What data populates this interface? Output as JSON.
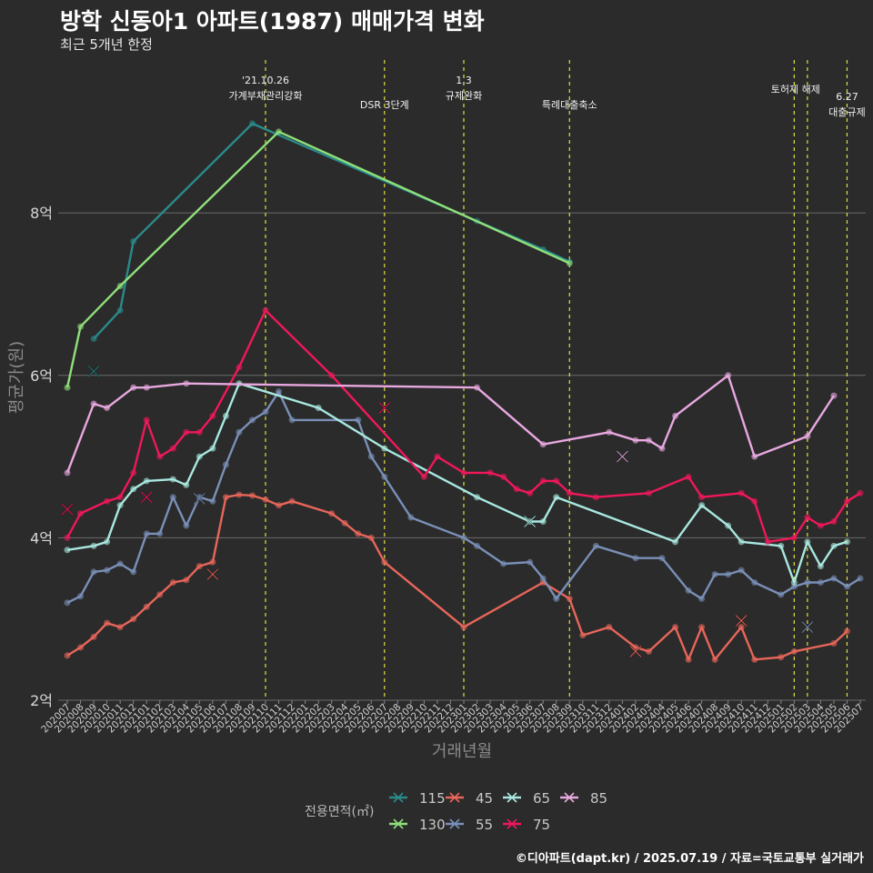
{
  "header": {
    "title": "방학 신동아1 아파트(1987) 매매가격 변화",
    "subtitle": "최근 5개년 한정"
  },
  "footer": {
    "source": "©디아파트(dapt.kr) / 2025.07.19 / 자료=국토교통부 실거래가"
  },
  "chart_data": {
    "type": "line",
    "title": "방학 신동아1 아파트(1987) 매매가격 변화",
    "subtitle": "최근 5개년 한정",
    "xlabel": "거래년월",
    "ylabel": "평균가(원)",
    "ylim": [
      2,
      9.95
    ],
    "yticks": [
      2,
      4,
      6,
      8
    ],
    "ytick_labels": [
      "2억",
      "4억",
      "6억",
      "8억"
    ],
    "x_categories": [
      "202007",
      "202008",
      "202009",
      "202010",
      "202011",
      "202012",
      "202101",
      "202102",
      "202103",
      "202104",
      "202105",
      "202106",
      "202107",
      "202108",
      "202109",
      "202110",
      "202111",
      "202112",
      "202201",
      "202202",
      "202203",
      "202204",
      "202205",
      "202206",
      "202207",
      "202208",
      "202209",
      "202210",
      "202211",
      "202212",
      "202301",
      "202302",
      "202303",
      "202304",
      "202305",
      "202306",
      "202307",
      "202308",
      "202309",
      "202310",
      "202311",
      "202312",
      "202401",
      "202402",
      "202403",
      "202404",
      "202405",
      "202406",
      "202407",
      "202408",
      "202409",
      "202410",
      "202411",
      "202412",
      "202501",
      "202502",
      "202503",
      "202504",
      "202505",
      "202506",
      "202507"
    ],
    "grid": true,
    "legend_title": "전용면적(㎡)",
    "legend_position": "bottom",
    "series": [
      {
        "name": "115",
        "color": "#2a8a8a",
        "points": [
          [
            "202009",
            6.45
          ],
          [
            "202011",
            6.8
          ],
          [
            "202012",
            7.65
          ],
          [
            "202109",
            9.1
          ],
          [
            "202302",
            7.9
          ],
          [
            "202307",
            7.55
          ],
          [
            "202309",
            7.4
          ]
        ],
        "markers": [
          [
            "202009",
            6.05
          ]
        ]
      },
      {
        "name": "130",
        "color": "#90e07a",
        "points": [
          [
            "202007",
            5.85
          ],
          [
            "202008",
            6.6
          ],
          [
            "202011",
            7.1
          ],
          [
            "202111",
            9.0
          ],
          [
            "202309",
            7.38
          ]
        ],
        "markers": []
      },
      {
        "name": "45",
        "color": "#e8665a",
        "points": [
          [
            "202007",
            2.55
          ],
          [
            "202008",
            2.65
          ],
          [
            "202009",
            2.78
          ],
          [
            "202010",
            2.95
          ],
          [
            "202011",
            2.9
          ],
          [
            "202012",
            3.0
          ],
          [
            "202101",
            3.15
          ],
          [
            "202102",
            3.3
          ],
          [
            "202103",
            3.45
          ],
          [
            "202104",
            3.48
          ],
          [
            "202105",
            3.65
          ],
          [
            "202106",
            3.7
          ],
          [
            "202107",
            4.5
          ],
          [
            "202108",
            4.53
          ],
          [
            "202109",
            4.52
          ],
          [
            "202110",
            4.47
          ],
          [
            "202111",
            4.4
          ],
          [
            "202112",
            4.45
          ],
          [
            "202203",
            4.3
          ],
          [
            "202204",
            4.18
          ],
          [
            "202205",
            4.05
          ],
          [
            "202206",
            4.0
          ],
          [
            "202207",
            3.7
          ],
          [
            "202301",
            2.9
          ],
          [
            "202307",
            3.45
          ],
          [
            "202309",
            3.25
          ],
          [
            "202310",
            2.8
          ],
          [
            "202312",
            2.9
          ],
          [
            "202402",
            2.65
          ],
          [
            "202403",
            2.6
          ],
          [
            "202405",
            2.9
          ],
          [
            "202406",
            2.5
          ],
          [
            "202407",
            2.9
          ],
          [
            "202408",
            2.5
          ],
          [
            "202410",
            2.9
          ],
          [
            "202411",
            2.5
          ],
          [
            "202501",
            2.53
          ],
          [
            "202502",
            2.6
          ],
          [
            "202505",
            2.7
          ],
          [
            "202506",
            2.85
          ]
        ],
        "markers": [
          [
            "202106",
            3.55
          ],
          [
            "202402",
            2.6
          ],
          [
            "202410",
            2.98
          ]
        ]
      },
      {
        "name": "55",
        "color": "#7a90b8",
        "points": [
          [
            "202007",
            3.2
          ],
          [
            "202008",
            3.28
          ],
          [
            "202009",
            3.58
          ],
          [
            "202010",
            3.6
          ],
          [
            "202011",
            3.68
          ],
          [
            "202012",
            3.58
          ],
          [
            "202101",
            4.05
          ],
          [
            "202102",
            4.05
          ],
          [
            "202103",
            4.5
          ],
          [
            "202104",
            4.15
          ],
          [
            "202105",
            4.5
          ],
          [
            "202106",
            4.45
          ],
          [
            "202107",
            4.9
          ],
          [
            "202108",
            5.3
          ],
          [
            "202109",
            5.45
          ],
          [
            "202110",
            5.55
          ],
          [
            "202111",
            5.8
          ],
          [
            "202112",
            5.45
          ],
          [
            "202205",
            5.45
          ],
          [
            "202206",
            5.0
          ],
          [
            "202207",
            4.75
          ],
          [
            "202209",
            4.25
          ],
          [
            "202301",
            4.0
          ],
          [
            "202302",
            3.9
          ],
          [
            "202304",
            3.68
          ],
          [
            "202306",
            3.7
          ],
          [
            "202307",
            3.5
          ],
          [
            "202308",
            3.25
          ],
          [
            "202311",
            3.9
          ],
          [
            "202402",
            3.75
          ],
          [
            "202404",
            3.75
          ],
          [
            "202406",
            3.35
          ],
          [
            "202407",
            3.25
          ],
          [
            "202408",
            3.55
          ],
          [
            "202409",
            3.55
          ],
          [
            "202410",
            3.6
          ],
          [
            "202411",
            3.45
          ],
          [
            "202501",
            3.3
          ],
          [
            "202502",
            3.4
          ],
          [
            "202503",
            3.45
          ],
          [
            "202504",
            3.45
          ],
          [
            "202505",
            3.5
          ],
          [
            "202506",
            3.4
          ],
          [
            "202507",
            3.5
          ]
        ],
        "markers": [
          [
            "202105",
            4.48
          ],
          [
            "202503",
            2.9
          ]
        ]
      },
      {
        "name": "65",
        "color": "#a8e8e0",
        "points": [
          [
            "202007",
            3.85
          ],
          [
            "202009",
            3.9
          ],
          [
            "202010",
            3.95
          ],
          [
            "202011",
            4.4
          ],
          [
            "202012",
            4.6
          ],
          [
            "202101",
            4.7
          ],
          [
            "202103",
            4.72
          ],
          [
            "202104",
            4.65
          ],
          [
            "202105",
            5.0
          ],
          [
            "202106",
            5.1
          ],
          [
            "202107",
            5.5
          ],
          [
            "202108",
            5.9
          ],
          [
            "202202",
            5.6
          ],
          [
            "202207",
            5.1
          ],
          [
            "202302",
            4.5
          ],
          [
            "202306",
            4.2
          ],
          [
            "202307",
            4.2
          ],
          [
            "202308",
            4.5
          ],
          [
            "202405",
            3.95
          ],
          [
            "202407",
            4.4
          ],
          [
            "202409",
            4.15
          ],
          [
            "202410",
            3.95
          ],
          [
            "202501",
            3.9
          ],
          [
            "202502",
            3.45
          ],
          [
            "202503",
            3.95
          ],
          [
            "202504",
            3.65
          ],
          [
            "202505",
            3.9
          ],
          [
            "202506",
            3.95
          ]
        ],
        "markers": [
          [
            "202306",
            4.2
          ]
        ]
      },
      {
        "name": "75",
        "color": "#f0185a",
        "points": [
          [
            "202007",
            4.0
          ],
          [
            "202008",
            4.3
          ],
          [
            "202010",
            4.45
          ],
          [
            "202011",
            4.5
          ],
          [
            "202012",
            4.8
          ],
          [
            "202101",
            5.45
          ],
          [
            "202102",
            5.0
          ],
          [
            "202103",
            5.1
          ],
          [
            "202104",
            5.3
          ],
          [
            "202105",
            5.3
          ],
          [
            "202106",
            5.5
          ],
          [
            "202108",
            6.1
          ],
          [
            "202110",
            6.8
          ],
          [
            "202203",
            6.0
          ],
          [
            "202210",
            4.75
          ],
          [
            "202211",
            5.0
          ],
          [
            "202301",
            4.8
          ],
          [
            "202303",
            4.8
          ],
          [
            "202304",
            4.75
          ],
          [
            "202305",
            4.6
          ],
          [
            "202306",
            4.55
          ],
          [
            "202307",
            4.7
          ],
          [
            "202308",
            4.7
          ],
          [
            "202309",
            4.55
          ],
          [
            "202311",
            4.5
          ],
          [
            "202403",
            4.55
          ],
          [
            "202406",
            4.75
          ],
          [
            "202407",
            4.5
          ],
          [
            "202410",
            4.55
          ],
          [
            "202411",
            4.45
          ],
          [
            "202412",
            3.95
          ],
          [
            "202502",
            4.0
          ],
          [
            "202503",
            4.25
          ],
          [
            "202504",
            4.15
          ],
          [
            "202505",
            4.2
          ],
          [
            "202506",
            4.45
          ],
          [
            "202507",
            4.55
          ]
        ],
        "markers": [
          [
            "202007",
            4.35
          ],
          [
            "202101",
            4.5
          ],
          [
            "202207",
            5.6
          ]
        ]
      },
      {
        "name": "85",
        "color": "#e8a8e0",
        "points": [
          [
            "202007",
            4.8
          ],
          [
            "202009",
            5.65
          ],
          [
            "202010",
            5.6
          ],
          [
            "202012",
            5.85
          ],
          [
            "202101",
            5.85
          ],
          [
            "202104",
            5.9
          ],
          [
            "202302",
            5.85
          ],
          [
            "202307",
            5.15
          ],
          [
            "202312",
            5.3
          ],
          [
            "202402",
            5.2
          ],
          [
            "202403",
            5.2
          ],
          [
            "202404",
            5.1
          ],
          [
            "202405",
            5.5
          ],
          [
            "202409",
            6.0
          ],
          [
            "202411",
            5.0
          ],
          [
            "202503",
            5.25
          ],
          [
            "202505",
            5.75
          ]
        ],
        "markers": [
          [
            "202401",
            5.0
          ]
        ]
      }
    ],
    "annotations": [
      {
        "x": "202110",
        "lines": [
          "'21.10.26",
          "가계부채관리강화"
        ]
      },
      {
        "x": "202207",
        "lines": [
          "DSR 3단계"
        ]
      },
      {
        "x": "202301",
        "lines": [
          "1.3",
          "규제완화"
        ]
      },
      {
        "x": "202309",
        "lines": [
          "특례대출축소"
        ]
      },
      {
        "x": "202502",
        "lines": []
      },
      {
        "x": "202503",
        "lines": [
          "토허제 해제"
        ]
      },
      {
        "x": "202506",
        "lines": [
          "6.27",
          "대출규제"
        ]
      }
    ]
  }
}
